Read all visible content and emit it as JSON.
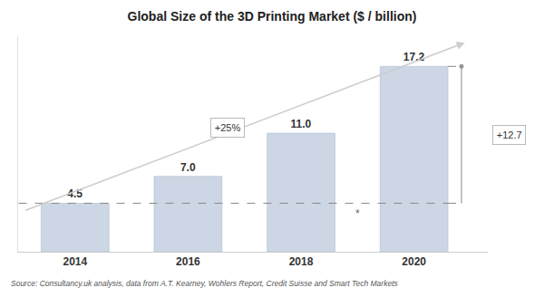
{
  "chart_data": {
    "type": "bar",
    "title": "Global Size of the 3D Printing Market ($ / billion)",
    "categories": [
      "2014",
      "2016",
      "2018",
      "2020"
    ],
    "values": [
      4.5,
      7.0,
      11.0,
      17.2
    ],
    "value_labels": [
      "4.5",
      "7.0",
      "11.0",
      "17.2"
    ],
    "color": "#cdd6e4",
    "ylim": [
      0,
      20
    ],
    "data_labels": true,
    "tick_labels": "x",
    "annotations": [
      "+25%",
      "+12.7",
      "*"
    ],
    "source": "Source: Consultancy.uk analysis, data from A.T. Kearney, Wohlers Report, Credit Suisse and Smart Tech Markets"
  }
}
